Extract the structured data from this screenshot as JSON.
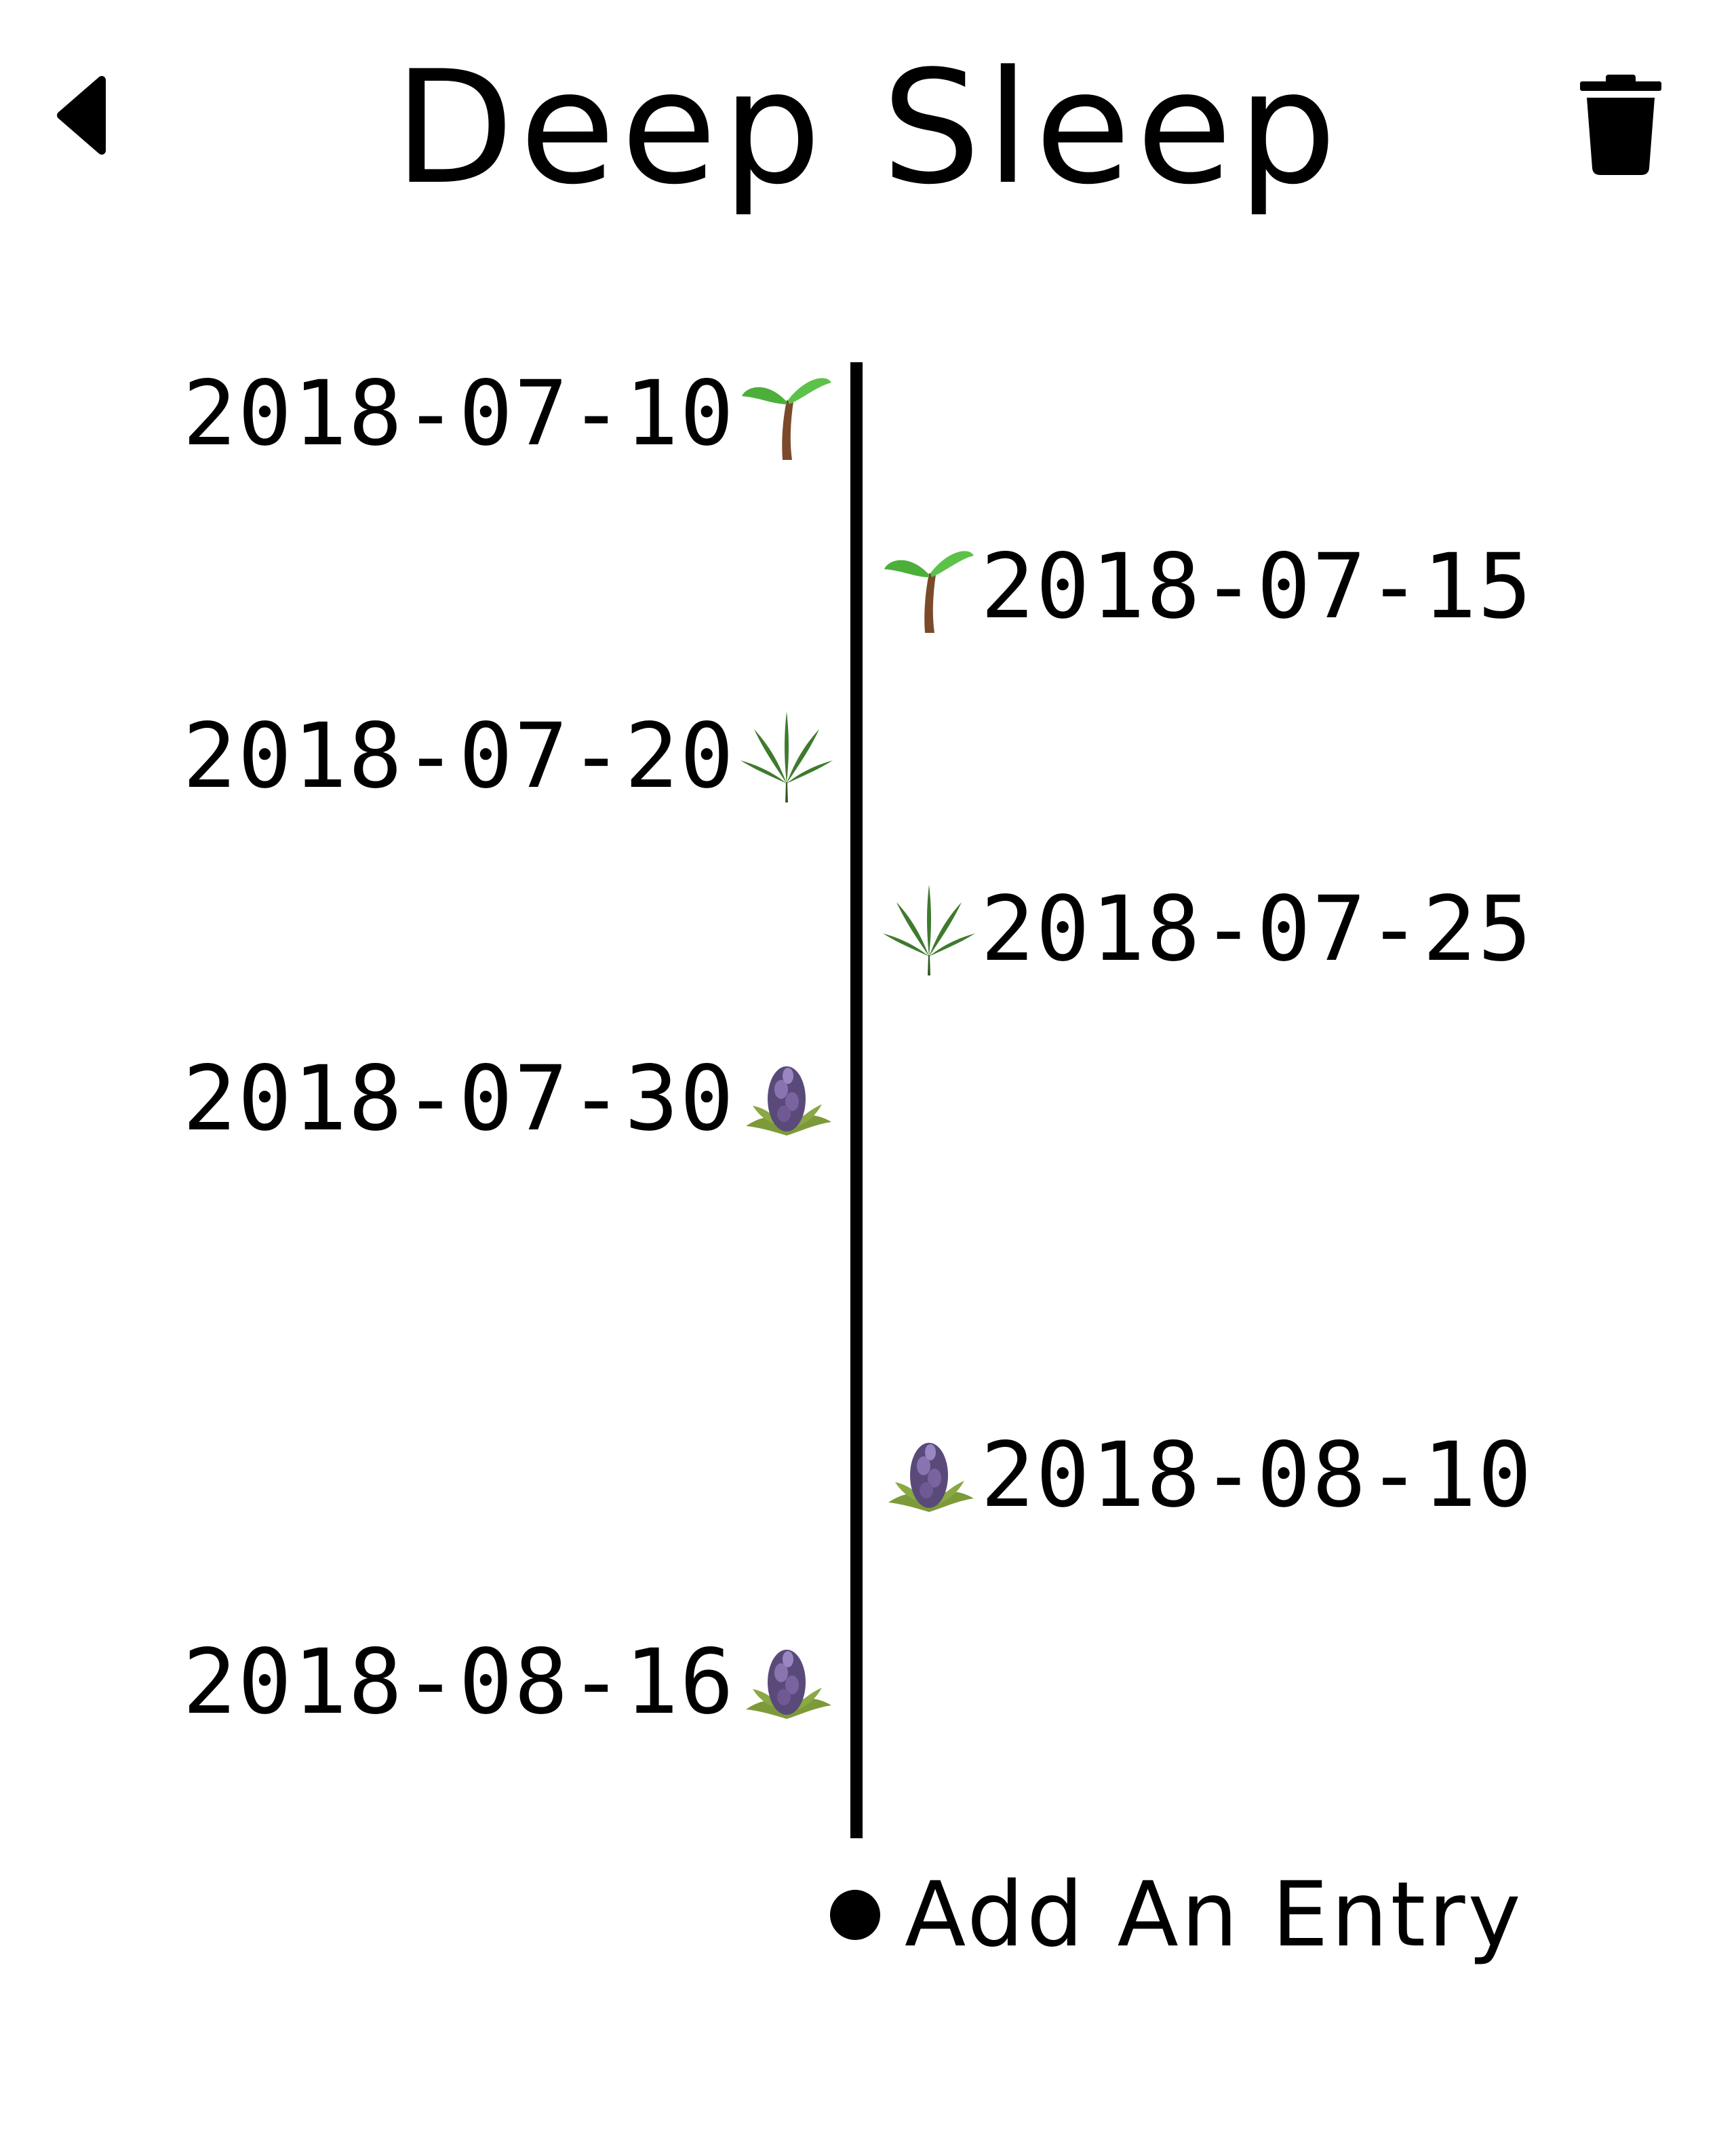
{
  "header": {
    "title": "Deep Sleep",
    "back_icon": "back-triangle-icon",
    "delete_icon": "trash-icon"
  },
  "entries": [
    {
      "date": "2018-07-10",
      "side": "left",
      "stage": "seedling-icon"
    },
    {
      "date": "2018-07-15",
      "side": "right",
      "stage": "seedling-icon"
    },
    {
      "date": "2018-07-20",
      "side": "left",
      "stage": "cannabis-leaf-icon"
    },
    {
      "date": "2018-07-25",
      "side": "right",
      "stage": "cannabis-leaf-icon"
    },
    {
      "date": "2018-07-30",
      "side": "left",
      "stage": "cannabis-bud-icon"
    },
    {
      "date": "2018-08-10",
      "side": "right",
      "stage": "cannabis-bud-icon"
    },
    {
      "date": "2018-08-16",
      "side": "left",
      "stage": "cannabis-bud-icon"
    }
  ],
  "add_entry": {
    "label": "Add An Entry"
  }
}
